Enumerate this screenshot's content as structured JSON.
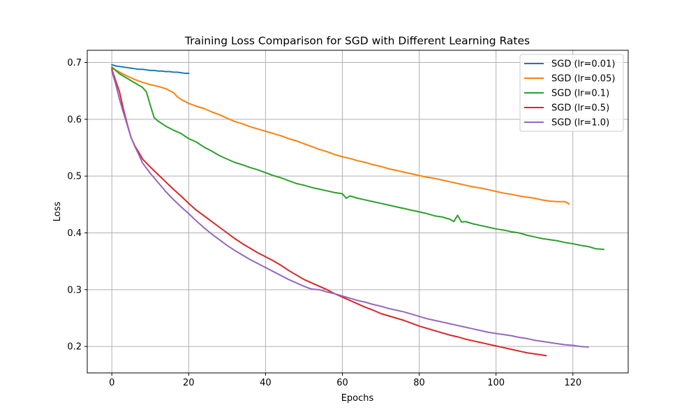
{
  "chart_data": {
    "type": "line",
    "title": "Training Loss Comparison for SGD with Different Learning Rates",
    "xlabel": "Epochs",
    "ylabel": "Loss",
    "xlim": [
      -6.4,
      134.4
    ],
    "ylim": [
      0.1535,
      0.7215
    ],
    "xticks": [
      0,
      20,
      40,
      60,
      80,
      100,
      120
    ],
    "yticks": [
      0.2,
      0.3,
      0.4,
      0.5,
      0.6,
      0.7
    ],
    "xtick_labels": [
      "0",
      "20",
      "40",
      "60",
      "80",
      "100",
      "120"
    ],
    "ytick_labels": [
      "0.2",
      "0.3",
      "0.4",
      "0.5",
      "0.6",
      "0.7"
    ],
    "grid": true,
    "legend_position": "top-right",
    "series": [
      {
        "name": "SGD (lr=0.01)",
        "color": "#1f77b4",
        "x": [
          0,
          1,
          2,
          3,
          4,
          5,
          6,
          7,
          8,
          9,
          10,
          11,
          12,
          13,
          14,
          15,
          16,
          17,
          18,
          19,
          20
        ],
        "values": [
          0.696,
          0.694,
          0.693,
          0.692,
          0.691,
          0.69,
          0.689,
          0.688,
          0.688,
          0.687,
          0.686,
          0.686,
          0.685,
          0.685,
          0.684,
          0.684,
          0.683,
          0.683,
          0.682,
          0.681,
          0.681
        ]
      },
      {
        "name": "SGD (lr=0.05)",
        "color": "#ff7f0e",
        "x": [
          0,
          2,
          4,
          6,
          8,
          10,
          12,
          14,
          16,
          17,
          18,
          20,
          22,
          24,
          26,
          28,
          30,
          32,
          34,
          36,
          38,
          40,
          42,
          44,
          46,
          48,
          50,
          52,
          54,
          56,
          58,
          60,
          62,
          64,
          66,
          68,
          70,
          72,
          74,
          76,
          78,
          80,
          82,
          84,
          86,
          88,
          90,
          92,
          94,
          96,
          98,
          100,
          102,
          104,
          106,
          108,
          110,
          112,
          114,
          116,
          118,
          119
        ],
        "values": [
          0.69,
          0.683,
          0.676,
          0.67,
          0.665,
          0.661,
          0.658,
          0.654,
          0.647,
          0.64,
          0.635,
          0.628,
          0.623,
          0.619,
          0.613,
          0.608,
          0.602,
          0.596,
          0.592,
          0.587,
          0.583,
          0.579,
          0.575,
          0.571,
          0.566,
          0.562,
          0.557,
          0.552,
          0.547,
          0.543,
          0.538,
          0.534,
          0.531,
          0.527,
          0.524,
          0.52,
          0.517,
          0.513,
          0.51,
          0.507,
          0.504,
          0.501,
          0.498,
          0.496,
          0.493,
          0.49,
          0.487,
          0.484,
          0.481,
          0.479,
          0.476,
          0.473,
          0.47,
          0.468,
          0.465,
          0.463,
          0.461,
          0.458,
          0.456,
          0.455,
          0.455,
          0.451
        ]
      },
      {
        "name": "SGD (lr=0.1)",
        "color": "#2ca02c",
        "x": [
          0,
          2,
          4,
          6,
          8,
          9,
          10,
          11,
          12,
          14,
          16,
          18,
          20,
          22,
          24,
          26,
          28,
          30,
          32,
          34,
          36,
          38,
          40,
          42,
          44,
          46,
          48,
          50,
          52,
          54,
          56,
          58,
          60,
          61,
          62,
          64,
          66,
          68,
          70,
          72,
          74,
          76,
          78,
          80,
          82,
          84,
          86,
          88,
          89,
          90,
          91,
          92,
          94,
          96,
          98,
          100,
          102,
          104,
          106,
          108,
          110,
          112,
          114,
          116,
          118,
          120,
          122,
          124,
          126,
          128
        ],
        "values": [
          0.692,
          0.68,
          0.672,
          0.664,
          0.656,
          0.648,
          0.625,
          0.603,
          0.597,
          0.588,
          0.581,
          0.575,
          0.566,
          0.56,
          0.551,
          0.544,
          0.536,
          0.53,
          0.524,
          0.52,
          0.515,
          0.511,
          0.506,
          0.501,
          0.497,
          0.492,
          0.487,
          0.484,
          0.48,
          0.477,
          0.474,
          0.471,
          0.469,
          0.461,
          0.465,
          0.461,
          0.458,
          0.455,
          0.452,
          0.449,
          0.446,
          0.443,
          0.44,
          0.437,
          0.434,
          0.43,
          0.428,
          0.424,
          0.42,
          0.431,
          0.419,
          0.42,
          0.416,
          0.413,
          0.41,
          0.407,
          0.405,
          0.402,
          0.4,
          0.396,
          0.393,
          0.39,
          0.388,
          0.386,
          0.383,
          0.381,
          0.378,
          0.376,
          0.372,
          0.371
        ]
      },
      {
        "name": "SGD (lr=0.5)",
        "color": "#d62728",
        "x": [
          0,
          1,
          2,
          3,
          4,
          5,
          6,
          7,
          8,
          10,
          12,
          14,
          16,
          18,
          20,
          22,
          24,
          26,
          28,
          30,
          32,
          34,
          36,
          38,
          40,
          42,
          44,
          46,
          48,
          50,
          52,
          54,
          56,
          58,
          60,
          62,
          64,
          66,
          68,
          70,
          72,
          74,
          76,
          78,
          80,
          82,
          84,
          86,
          88,
          90,
          92,
          94,
          96,
          98,
          100,
          102,
          104,
          106,
          108,
          110,
          112,
          113
        ],
        "values": [
          0.688,
          0.668,
          0.648,
          0.618,
          0.592,
          0.568,
          0.553,
          0.542,
          0.53,
          0.516,
          0.503,
          0.49,
          0.477,
          0.465,
          0.452,
          0.44,
          0.43,
          0.42,
          0.41,
          0.4,
          0.39,
          0.381,
          0.373,
          0.365,
          0.358,
          0.351,
          0.343,
          0.334,
          0.326,
          0.318,
          0.312,
          0.306,
          0.3,
          0.293,
          0.287,
          0.281,
          0.275,
          0.269,
          0.264,
          0.258,
          0.254,
          0.25,
          0.246,
          0.241,
          0.236,
          0.232,
          0.228,
          0.224,
          0.22,
          0.217,
          0.213,
          0.21,
          0.207,
          0.204,
          0.201,
          0.198,
          0.195,
          0.192,
          0.189,
          0.187,
          0.185,
          0.184
        ]
      },
      {
        "name": "SGD (lr=1.0)",
        "color": "#9467bd",
        "x": [
          0,
          1,
          2,
          3,
          4,
          5,
          6,
          7,
          8,
          10,
          12,
          14,
          16,
          18,
          20,
          22,
          24,
          26,
          28,
          30,
          32,
          34,
          36,
          38,
          40,
          42,
          44,
          46,
          48,
          50,
          52,
          54,
          56,
          58,
          60,
          62,
          64,
          66,
          68,
          70,
          72,
          74,
          76,
          78,
          80,
          82,
          84,
          86,
          88,
          90,
          92,
          94,
          96,
          98,
          100,
          102,
          104,
          106,
          108,
          110,
          112,
          114,
          116,
          118,
          120,
          122,
          124
        ],
        "values": [
          0.685,
          0.662,
          0.635,
          0.612,
          0.59,
          0.568,
          0.552,
          0.538,
          0.523,
          0.505,
          0.489,
          0.473,
          0.459,
          0.446,
          0.434,
          0.421,
          0.409,
          0.398,
          0.388,
          0.378,
          0.369,
          0.361,
          0.353,
          0.346,
          0.339,
          0.332,
          0.325,
          0.318,
          0.312,
          0.306,
          0.301,
          0.3,
          0.296,
          0.293,
          0.289,
          0.285,
          0.281,
          0.278,
          0.274,
          0.271,
          0.267,
          0.264,
          0.261,
          0.257,
          0.253,
          0.249,
          0.246,
          0.243,
          0.24,
          0.237,
          0.234,
          0.231,
          0.228,
          0.225,
          0.223,
          0.221,
          0.219,
          0.216,
          0.214,
          0.211,
          0.209,
          0.207,
          0.205,
          0.203,
          0.202,
          0.2,
          0.199
        ]
      }
    ]
  }
}
